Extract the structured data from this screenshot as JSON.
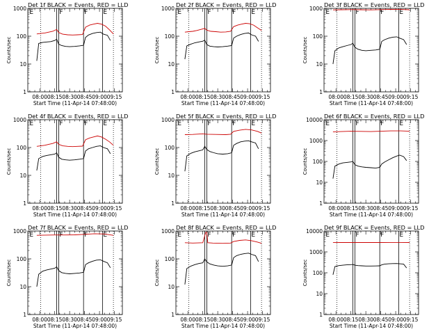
{
  "chart_data": [
    {
      "type": "line",
      "title": "Det 1f BLACK = Events, RED = LLD",
      "xlabel": "Start Time (11-Apr-14 07:48:00)",
      "ylabel": "Counts/sec",
      "yscale": "log",
      "ylim": [
        1,
        1000
      ],
      "y_ticks": [
        "1",
        "10",
        "100",
        "1000"
      ],
      "x_ticks": [
        "08:00",
        "08:15",
        "08:30",
        "08:45",
        "09:00",
        "09:15"
      ],
      "event_markers": [
        "E",
        "F",
        "F",
        "E"
      ],
      "series": [
        {
          "name": "Events",
          "color": "#000000",
          "x": [
            "07:57",
            "07:59",
            "08:03",
            "08:07",
            "08:11",
            "08:15",
            "08:17",
            "08:19",
            "08:22",
            "08:26",
            "08:30",
            "08:35",
            "08:40",
            "08:44",
            "08:46",
            "08:49",
            "08:53",
            "08:57",
            "09:01",
            "09:04",
            "09:08",
            "09:11"
          ],
          "y": [
            13,
            55,
            60,
            62,
            64,
            70,
            78,
            52,
            46,
            43,
            42,
            43,
            45,
            47,
            90,
            110,
            125,
            135,
            140,
            118,
            108,
            70
          ]
        },
        {
          "name": "LLD",
          "color": "#cc0000",
          "x": [
            "07:57",
            "08:01",
            "08:05",
            "08:09",
            "08:13",
            "08:17",
            "08:19",
            "08:23",
            "08:28",
            "08:33",
            "08:38",
            "08:43",
            "08:46",
            "08:50",
            "08:54",
            "08:58",
            "09:02",
            "09:06",
            "09:10",
            "09:14"
          ],
          "y": [
            120,
            125,
            130,
            140,
            150,
            175,
            135,
            118,
            112,
            110,
            112,
            115,
            210,
            250,
            270,
            290,
            270,
            230,
            170,
            120
          ]
        }
      ]
    },
    {
      "type": "line",
      "title": "Det 2f BLACK = Events, RED = LLD",
      "xlabel": "Start Time (11-Apr-14 07:48:00)",
      "ylabel": "Counts/sec",
      "yscale": "log",
      "ylim": [
        1,
        1000
      ],
      "y_ticks": [
        "1",
        "10",
        "100",
        "1000"
      ],
      "x_ticks": [
        "08:00",
        "08:15",
        "08:30",
        "08:45",
        "09:00",
        "09:15"
      ],
      "event_markers": [
        "E",
        "F",
        "F",
        "E"
      ],
      "series": [
        {
          "name": "Events",
          "color": "#000000",
          "x": [
            "07:57",
            "07:59",
            "08:03",
            "08:07",
            "08:11",
            "08:15",
            "08:17",
            "08:19",
            "08:22",
            "08:26",
            "08:30",
            "08:35",
            "08:40",
            "08:44",
            "08:46",
            "08:49",
            "08:53",
            "08:57",
            "09:01",
            "09:04",
            "09:08",
            "09:11"
          ],
          "y": [
            15,
            45,
            52,
            58,
            62,
            66,
            72,
            50,
            44,
            42,
            41,
            42,
            44,
            46,
            85,
            100,
            115,
            125,
            130,
            112,
            100,
            65
          ]
        },
        {
          "name": "LLD",
          "color": "#cc0000",
          "x": [
            "07:57",
            "08:01",
            "08:05",
            "08:09",
            "08:13",
            "08:17",
            "08:19",
            "08:23",
            "08:28",
            "08:33",
            "08:38",
            "08:43",
            "08:46",
            "08:50",
            "08:54",
            "08:58",
            "09:02",
            "09:06",
            "09:10",
            "09:14"
          ],
          "y": [
            140,
            145,
            150,
            160,
            175,
            190,
            165,
            150,
            145,
            140,
            142,
            150,
            220,
            250,
            270,
            290,
            280,
            250,
            200,
            160
          ]
        }
      ]
    },
    {
      "type": "line",
      "title": "Det 3f BLACK = Events, RED = LLD",
      "xlabel": "Start Time (11-Apr-14 07:48:00)",
      "ylabel": "Counts/sec",
      "yscale": "log",
      "ylim": [
        1,
        1000
      ],
      "y_ticks": [
        "1",
        "10",
        "100",
        "1000"
      ],
      "x_ticks": [
        "08:00",
        "08:15",
        "08:30",
        "08:45",
        "09:00",
        "09:15"
      ],
      "event_markers": [
        "E",
        "F",
        "F",
        "E"
      ],
      "series": [
        {
          "name": "Events",
          "color": "#000000",
          "x": [
            "07:57",
            "07:59",
            "08:03",
            "08:07",
            "08:11",
            "08:15",
            "08:17",
            "08:19",
            "08:22",
            "08:26",
            "08:30",
            "08:35",
            "08:40",
            "08:44",
            "08:46",
            "08:49",
            "08:53",
            "08:57",
            "09:01",
            "09:04",
            "09:08",
            "09:11"
          ],
          "y": [
            10,
            30,
            38,
            42,
            46,
            50,
            56,
            40,
            34,
            31,
            30,
            31,
            32,
            34,
            65,
            75,
            85,
            92,
            95,
            85,
            75,
            50
          ]
        },
        {
          "name": "LLD",
          "color": "#cc0000",
          "x": [
            "07:57",
            "08:05",
            "08:15",
            "08:25",
            "08:35",
            "08:45",
            "08:55",
            "09:05",
            "09:14"
          ],
          "y": [
            880,
            890,
            900,
            890,
            880,
            900,
            920,
            910,
            890
          ]
        }
      ]
    },
    {
      "type": "line",
      "title": "Det 4f BLACK = Events, RED = LLD",
      "xlabel": "Start Time (11-Apr-14 07:48:00)",
      "ylabel": "Counts/sec",
      "yscale": "log",
      "ylim": [
        1,
        1000
      ],
      "y_ticks": [
        "1",
        "10",
        "100",
        "1000"
      ],
      "x_ticks": [
        "08:00",
        "08:15",
        "08:30",
        "08:45",
        "09:00",
        "09:15"
      ],
      "event_markers": [
        "E",
        "F",
        "F",
        "E"
      ],
      "series": [
        {
          "name": "Events",
          "color": "#000000",
          "x": [
            "07:57",
            "07:59",
            "08:03",
            "08:07",
            "08:11",
            "08:15",
            "08:17",
            "08:19",
            "08:22",
            "08:26",
            "08:30",
            "08:35",
            "08:40",
            "08:44",
            "08:46",
            "08:49",
            "08:53",
            "08:57",
            "09:01",
            "09:04",
            "09:08",
            "09:11"
          ],
          "y": [
            15,
            40,
            48,
            52,
            55,
            58,
            65,
            45,
            38,
            36,
            35,
            36,
            38,
            40,
            75,
            90,
            100,
            110,
            115,
            100,
            90,
            60
          ]
        },
        {
          "name": "LLD",
          "color": "#cc0000",
          "x": [
            "07:57",
            "08:01",
            "08:05",
            "08:09",
            "08:13",
            "08:17",
            "08:19",
            "08:23",
            "08:28",
            "08:33",
            "08:38",
            "08:43",
            "08:46",
            "08:50",
            "08:54",
            "08:58",
            "09:02",
            "09:06",
            "09:10",
            "09:14"
          ],
          "y": [
            110,
            115,
            120,
            130,
            140,
            160,
            130,
            115,
            110,
            108,
            110,
            112,
            190,
            220,
            240,
            260,
            240,
            200,
            160,
            120
          ]
        }
      ]
    },
    {
      "type": "line",
      "title": "Det 5f BLACK = Events, RED = LLD",
      "xlabel": "Start Time (11-Apr-14 07:48:00)",
      "ylabel": "Counts/sec",
      "yscale": "log",
      "ylim": [
        1,
        1000
      ],
      "y_ticks": [
        "1",
        "10",
        "100",
        "1000"
      ],
      "x_ticks": [
        "08:00",
        "08:15",
        "08:30",
        "08:45",
        "09:00",
        "09:15"
      ],
      "event_markers": [
        "E",
        "F",
        "F",
        "E"
      ],
      "series": [
        {
          "name": "Events",
          "color": "#000000",
          "x": [
            "07:57",
            "07:59",
            "08:03",
            "08:07",
            "08:11",
            "08:15",
            "08:17",
            "08:19",
            "08:22",
            "08:26",
            "08:30",
            "08:35",
            "08:40",
            "08:44",
            "08:46",
            "08:49",
            "08:53",
            "08:57",
            "09:01",
            "09:04",
            "09:08",
            "09:11"
          ],
          "y": [
            14,
            50,
            62,
            70,
            76,
            82,
            110,
            85,
            72,
            65,
            60,
            58,
            60,
            65,
            120,
            140,
            160,
            170,
            175,
            160,
            145,
            90
          ]
        },
        {
          "name": "LLD",
          "color": "#cc0000",
          "x": [
            "07:57",
            "08:05",
            "08:15",
            "08:19",
            "08:28",
            "08:38",
            "08:43",
            "08:46",
            "08:52",
            "08:58",
            "09:04",
            "09:10",
            "09:14"
          ],
          "y": [
            290,
            295,
            310,
            300,
            295,
            290,
            300,
            380,
            420,
            450,
            430,
            380,
            330
          ]
        }
      ]
    },
    {
      "type": "line",
      "title": "Det 6f BLACK = Events, RED = LLD",
      "xlabel": "Start Time (11-Apr-14 07:48:00)",
      "ylabel": "Counts/sec",
      "yscale": "log",
      "ylim": [
        1,
        10000
      ],
      "y_ticks": [
        "1",
        "10",
        "100",
        "1000",
        "10000"
      ],
      "x_ticks": [
        "08:00",
        "08:15",
        "08:30",
        "08:45",
        "09:00",
        "09:15"
      ],
      "event_markers": [
        "E",
        "F",
        "F",
        "E"
      ],
      "series": [
        {
          "name": "Events",
          "color": "#000000",
          "x": [
            "07:57",
            "07:59",
            "08:03",
            "08:07",
            "08:11",
            "08:15",
            "08:17",
            "08:19",
            "08:22",
            "08:26",
            "08:30",
            "08:35",
            "08:40",
            "08:44",
            "08:46",
            "08:49",
            "08:53",
            "08:57",
            "09:01",
            "09:04",
            "09:08",
            "09:11"
          ],
          "y": [
            15,
            60,
            75,
            85,
            90,
            95,
            100,
            70,
            60,
            55,
            52,
            50,
            48,
            52,
            75,
            95,
            120,
            150,
            180,
            200,
            170,
            110
          ]
        },
        {
          "name": "LLD",
          "color": "#cc0000",
          "x": [
            "07:57",
            "08:05",
            "08:15",
            "08:25",
            "08:35",
            "08:45",
            "08:55",
            "09:05",
            "09:14"
          ],
          "y": [
            2600,
            2700,
            2800,
            2750,
            2700,
            2800,
            2900,
            2900,
            2800
          ]
        }
      ]
    },
    {
      "type": "line",
      "title": "Det 7f BLACK = Events, RED = LLD",
      "xlabel": "Start Time (11-Apr-14 07:48:00)",
      "ylabel": "Counts/sec",
      "yscale": "log",
      "ylim": [
        1,
        1000
      ],
      "y_ticks": [
        "1",
        "10",
        "100",
        "1000"
      ],
      "x_ticks": [
        "08:00",
        "08:15",
        "08:30",
        "08:45",
        "09:00",
        "09:15"
      ],
      "event_markers": [
        "E",
        "F",
        "F",
        "E"
      ],
      "series": [
        {
          "name": "Events",
          "color": "#000000",
          "x": [
            "07:57",
            "07:59",
            "08:03",
            "08:07",
            "08:11",
            "08:15",
            "08:17",
            "08:19",
            "08:22",
            "08:26",
            "08:30",
            "08:35",
            "08:40",
            "08:44",
            "08:46",
            "08:49",
            "08:53",
            "08:57",
            "09:01",
            "09:04",
            "09:08",
            "09:11"
          ],
          "y": [
            10,
            28,
            36,
            40,
            43,
            46,
            52,
            38,
            32,
            30,
            29,
            30,
            31,
            33,
            62,
            72,
            82,
            90,
            92,
            82,
            72,
            48
          ]
        },
        {
          "name": "LLD",
          "color": "#cc0000",
          "x": [
            "07:57",
            "08:05",
            "08:15",
            "08:25",
            "08:35",
            "08:45",
            "08:55",
            "09:05",
            "09:14"
          ],
          "y": [
            700,
            710,
            720,
            720,
            730,
            760,
            800,
            780,
            700
          ]
        }
      ]
    },
    {
      "type": "line",
      "title": "Det 8f BLACK = Events, RED = LLD",
      "xlabel": "Start Time (11-Apr-14 07:48:00)",
      "ylabel": "Counts/sec",
      "yscale": "log",
      "ylim": [
        1,
        1000
      ],
      "y_ticks": [
        "1",
        "10",
        "100",
        "1000"
      ],
      "x_ticks": [
        "08:00",
        "08:15",
        "08:30",
        "08:45",
        "09:00",
        "09:15"
      ],
      "event_markers": [
        "E",
        "F",
        "F",
        "E"
      ],
      "series": [
        {
          "name": "Events",
          "color": "#000000",
          "x": [
            "07:57",
            "07:59",
            "08:03",
            "08:07",
            "08:11",
            "08:15",
            "08:17",
            "08:19",
            "08:22",
            "08:26",
            "08:30",
            "08:35",
            "08:40",
            "08:44",
            "08:46",
            "08:49",
            "08:53",
            "08:57",
            "09:01",
            "09:04",
            "09:08",
            "09:11"
          ],
          "y": [
            12,
            45,
            55,
            62,
            68,
            72,
            100,
            78,
            66,
            60,
            56,
            54,
            56,
            60,
            110,
            130,
            145,
            155,
            160,
            145,
            130,
            80
          ]
        },
        {
          "name": "LLD",
          "color": "#cc0000",
          "x": [
            "07:57",
            "08:05",
            "08:15",
            "08:18",
            "08:19",
            "08:20",
            "08:25",
            "08:35",
            "08:43",
            "08:46",
            "08:52",
            "08:58",
            "09:04",
            "09:10",
            "09:14"
          ],
          "y": [
            380,
            370,
            380,
            900,
            900,
            380,
            370,
            360,
            370,
            420,
            460,
            480,
            450,
            400,
            360
          ]
        }
      ]
    },
    {
      "type": "line",
      "title": "Det 9f BLACK = Events, RED = LLD",
      "xlabel": "Start Time (11-Apr-14 07:48:00)",
      "ylabel": "Counts/sec",
      "yscale": "log",
      "ylim": [
        1,
        10000
      ],
      "y_ticks": [
        "1",
        "10",
        "100",
        "1000",
        "10000"
      ],
      "x_ticks": [
        "08:00",
        "08:15",
        "08:30",
        "08:45",
        "09:00",
        "09:15"
      ],
      "event_markers": [
        "E",
        "F",
        "F",
        "E"
      ],
      "series": [
        {
          "name": "Events",
          "color": "#000000",
          "x": [
            "07:57",
            "07:59",
            "08:03",
            "08:07",
            "08:11",
            "08:15",
            "08:17",
            "08:19",
            "08:22",
            "08:26",
            "08:30",
            "08:35",
            "08:40",
            "08:44",
            "08:46",
            "08:49",
            "08:53",
            "08:57",
            "09:01",
            "09:04",
            "09:08",
            "09:11"
          ],
          "y": [
            80,
            200,
            220,
            230,
            240,
            245,
            250,
            230,
            220,
            215,
            210,
            210,
            212,
            215,
            240,
            260,
            270,
            275,
            278,
            270,
            260,
            170
          ]
        },
        {
          "name": "LLD",
          "color": "#cc0000",
          "x": [
            "07:57",
            "08:05",
            "08:15",
            "08:25",
            "08:35",
            "08:45",
            "08:55",
            "09:05",
            "09:14"
          ],
          "y": [
            2800,
            2810,
            2820,
            2820,
            2810,
            2820,
            2830,
            2830,
            2820
          ]
        }
      ]
    }
  ]
}
